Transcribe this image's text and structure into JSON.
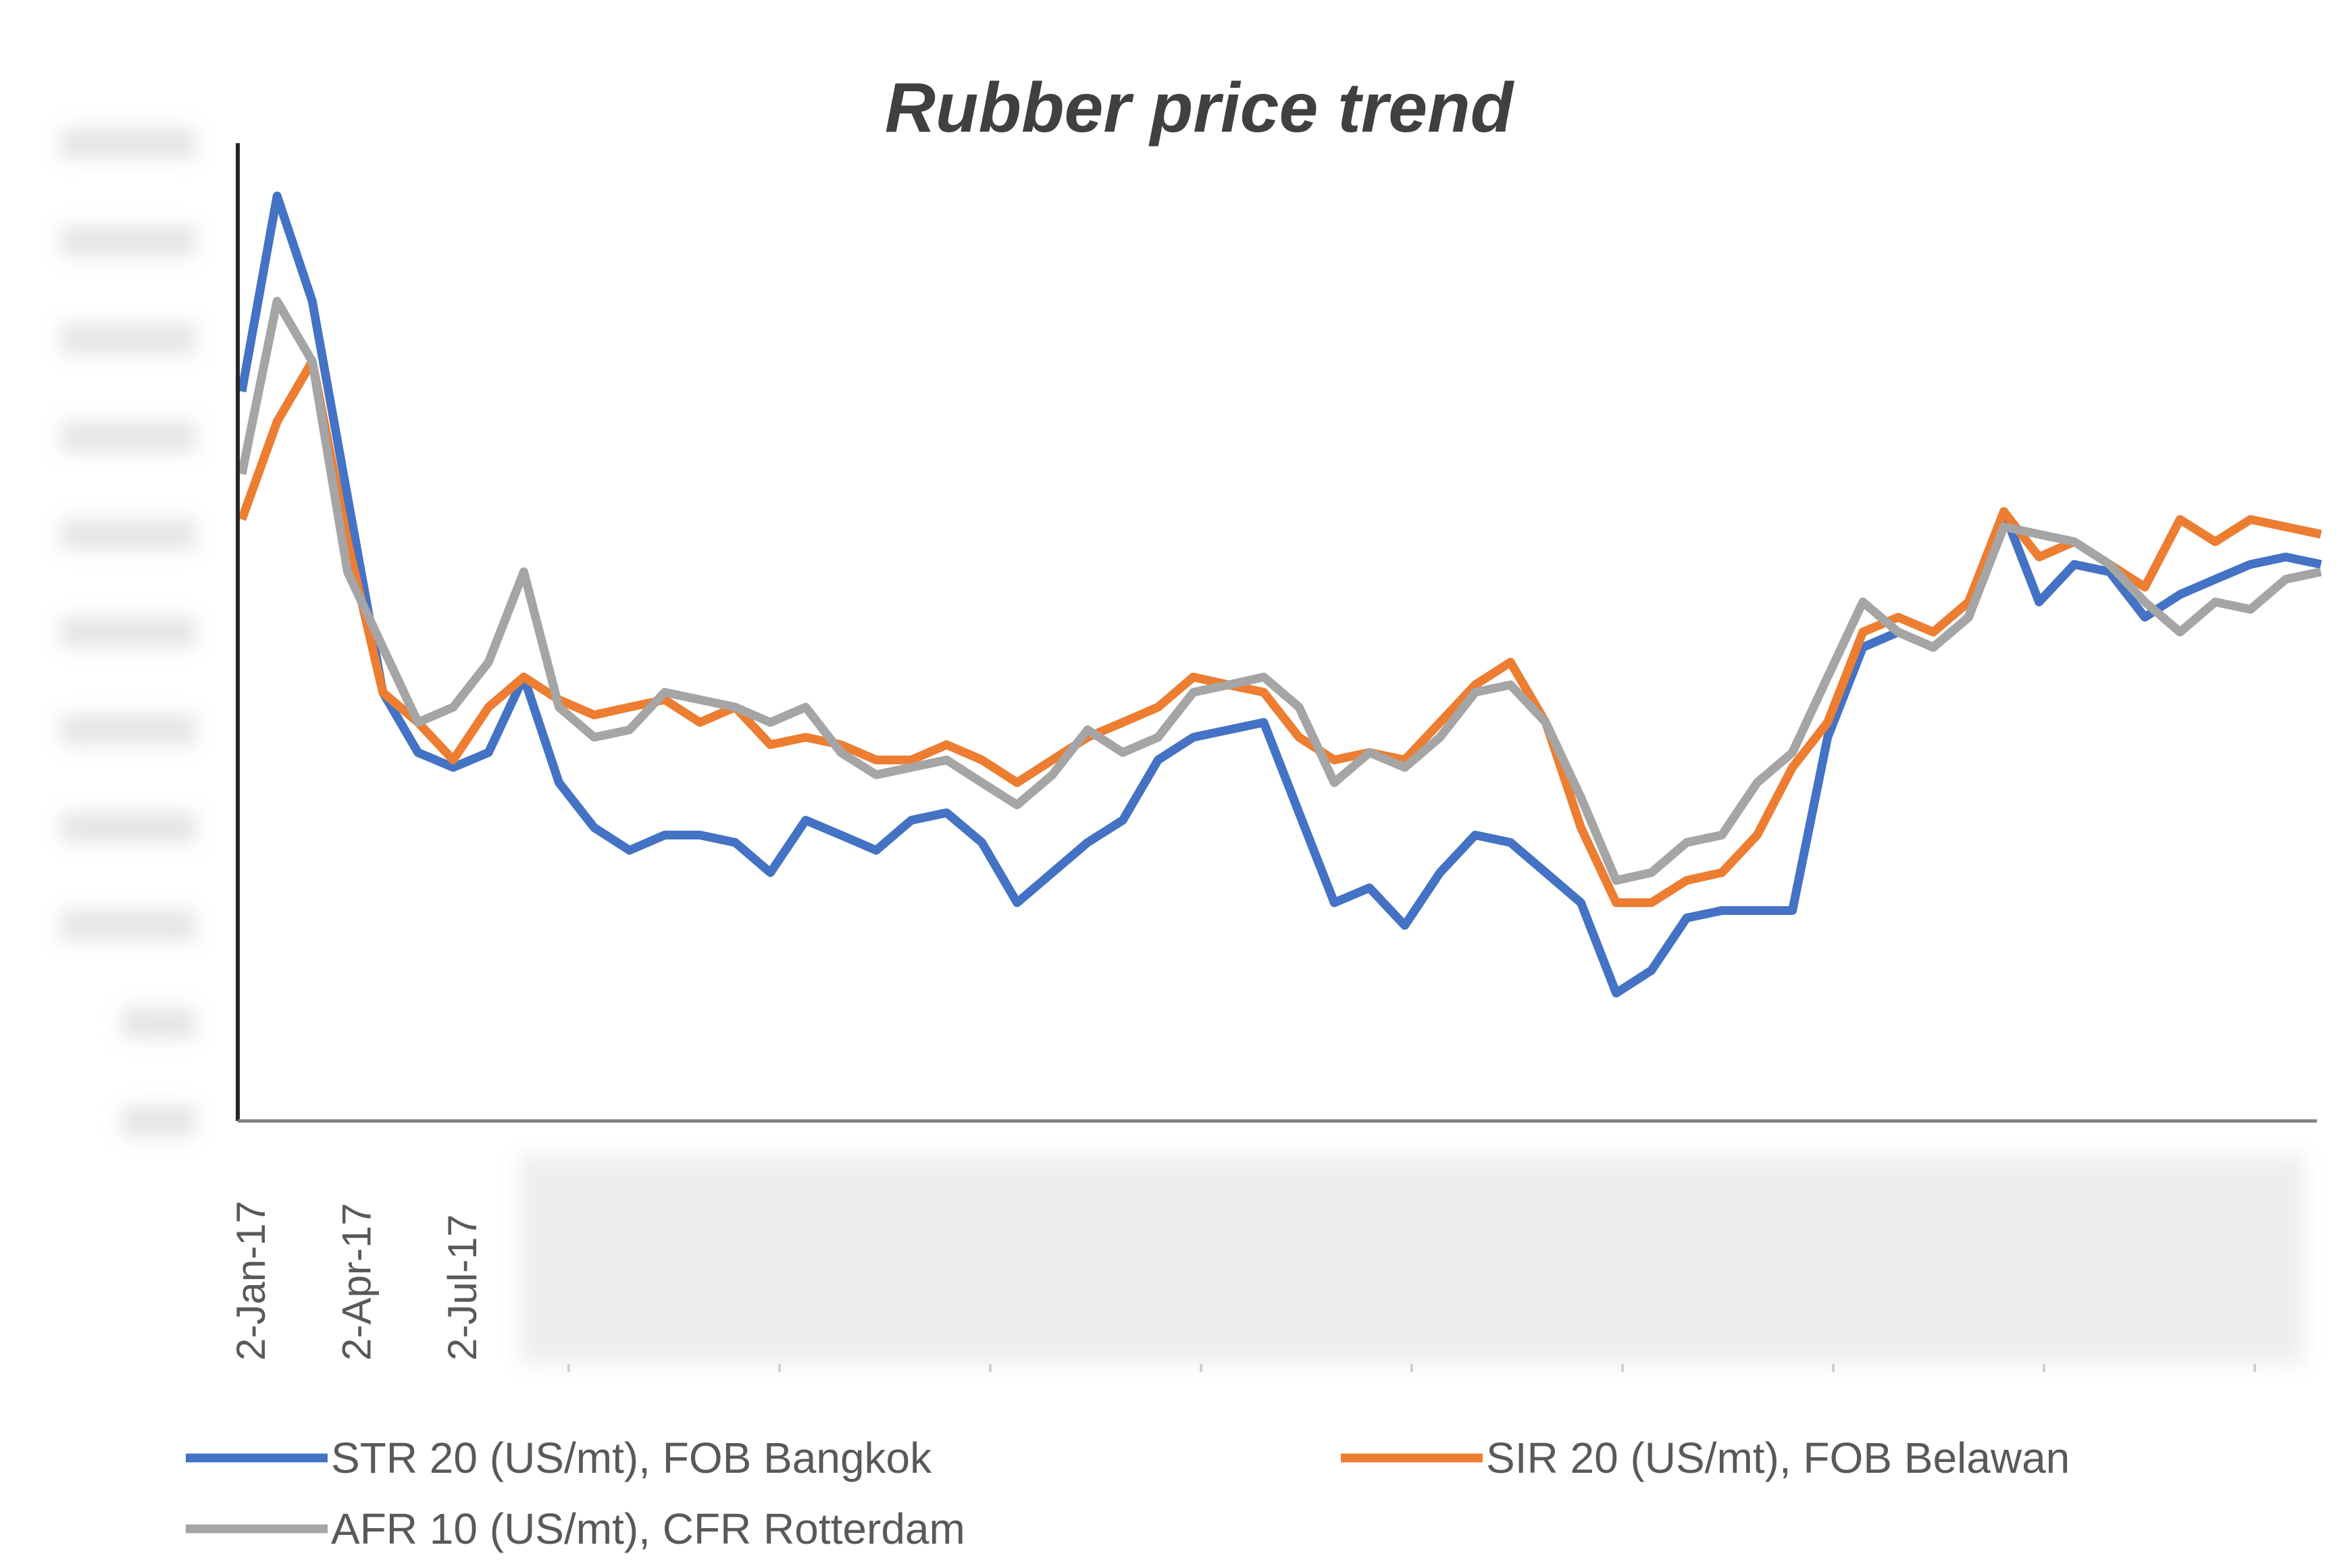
{
  "chart_data": {
    "type": "line",
    "title": "Rubber price trend",
    "xlabel": "",
    "ylabel": "",
    "x_start": "2-Jan-17",
    "x_step": "1 month",
    "x_tick_labels": [
      "2-Jan-17",
      "2-Apr-17",
      "2-Jul-17"
    ],
    "ylim": [
      0,
      2500
    ],
    "grid": false,
    "legend": "bottom",
    "series": [
      {
        "name": "STR 20 (US/mt), FOB Bangkok",
        "color": "#4472C4",
        "values": [
          1865,
          2365,
          2096,
          1596,
          1096,
          942,
          904,
          942,
          1135,
          865,
          750,
          692,
          731,
          731,
          712,
          635,
          769,
          731,
          692,
          769,
          788,
          712,
          558,
          635,
          712,
          769,
          923,
          981,
          1000,
          1019,
          788,
          558,
          596,
          500,
          635,
          731,
          712,
          635,
          558,
          327,
          385,
          519,
          538,
          538,
          538,
          981,
          1211,
          1250,
          1211,
          1288,
          1558,
          1327,
          1423,
          1404,
          1288,
          1346,
          1385,
          1423,
          1442,
          1423
        ]
      },
      {
        "name": "SIR 20 (US/mt), FOB Belawan",
        "color": "#ED7D31",
        "values": [
          1538,
          1788,
          1942,
          1481,
          1096,
          1019,
          923,
          1058,
          1135,
          1077,
          1038,
          1058,
          1077,
          1019,
          1058,
          962,
          981,
          962,
          923,
          923,
          962,
          923,
          865,
          923,
          981,
          1019,
          1058,
          1135,
          1115,
          1096,
          981,
          923,
          942,
          923,
          1019,
          1115,
          1173,
          1019,
          750,
          558,
          558,
          615,
          635,
          731,
          904,
          1019,
          1250,
          1288,
          1250,
          1327,
          1558,
          1442,
          1481,
          1423,
          1365,
          1538,
          1481,
          1538,
          1519,
          1500
        ]
      },
      {
        "name": "AFR 10 (US/mt), CFR Rotterdam",
        "color": "#A5A5A5",
        "values": [
          1654,
          2096,
          1942,
          1404,
          1211,
          1019,
          1058,
          1173,
          1404,
          1058,
          981,
          1000,
          1096,
          1077,
          1058,
          1019,
          1058,
          942,
          885,
          904,
          923,
          865,
          808,
          885,
          1000,
          942,
          981,
          1096,
          1115,
          1135,
          1058,
          865,
          942,
          904,
          981,
          1096,
          1115,
          1019,
          827,
          615,
          635,
          712,
          731,
          865,
          942,
          1135,
          1327,
          1250,
          1211,
          1288,
          1519,
          1500,
          1481,
          1423,
          1327,
          1250,
          1327,
          1308,
          1385,
          1404
        ]
      }
    ]
  }
}
